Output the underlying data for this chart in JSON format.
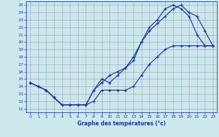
{
  "xlabel": "Graphe des températures (°c)",
  "bg_color": "#cce8ec",
  "line_color": "#1a3a9e",
  "grid_color": "#9999bb",
  "xlim": [
    -0.5,
    23.5
  ],
  "ylim": [
    10.5,
    25.5
  ],
  "xticks": [
    0,
    1,
    2,
    3,
    4,
    5,
    6,
    7,
    8,
    9,
    10,
    11,
    12,
    13,
    14,
    15,
    16,
    17,
    18,
    19,
    20,
    21,
    22,
    23
  ],
  "yticks": [
    11,
    12,
    13,
    14,
    15,
    16,
    17,
    18,
    19,
    20,
    21,
    22,
    23,
    24,
    25
  ],
  "line1_x": [
    0,
    1,
    2,
    3,
    4,
    5,
    6,
    7,
    8,
    9,
    10,
    11,
    12,
    13,
    14,
    15,
    16,
    17,
    18,
    19,
    20,
    21,
    22,
    23
  ],
  "line1_y": [
    14.5,
    14.0,
    13.5,
    12.5,
    11.5,
    11.5,
    11.5,
    11.5,
    12.0,
    13.5,
    13.5,
    13.5,
    13.5,
    14.0,
    15.5,
    17.0,
    18.0,
    19.0,
    19.5,
    19.5,
    19.5,
    19.5,
    19.5,
    19.5
  ],
  "line2_x": [
    0,
    1,
    2,
    3,
    4,
    5,
    6,
    7,
    8,
    9,
    10,
    11,
    12,
    13,
    14,
    15,
    16,
    17,
    18,
    19,
    20,
    21,
    22,
    23
  ],
  "line2_y": [
    14.5,
    14.0,
    13.5,
    12.5,
    11.5,
    11.5,
    11.5,
    11.5,
    13.5,
    14.5,
    15.5,
    16.0,
    16.5,
    18.0,
    20.0,
    21.5,
    22.5,
    23.5,
    24.5,
    25.0,
    24.0,
    23.5,
    21.5,
    19.5
  ],
  "line3_x": [
    0,
    1,
    2,
    3,
    4,
    5,
    6,
    7,
    8,
    9,
    10,
    11,
    12,
    13,
    14,
    15,
    16,
    17,
    18,
    19,
    20,
    21,
    22,
    23
  ],
  "line3_y": [
    14.5,
    14.0,
    13.5,
    12.5,
    11.5,
    11.5,
    11.5,
    11.5,
    13.5,
    15.0,
    14.5,
    15.5,
    16.5,
    17.5,
    20.0,
    22.0,
    23.0,
    24.5,
    25.0,
    24.5,
    23.5,
    21.0,
    19.5,
    19.5
  ]
}
